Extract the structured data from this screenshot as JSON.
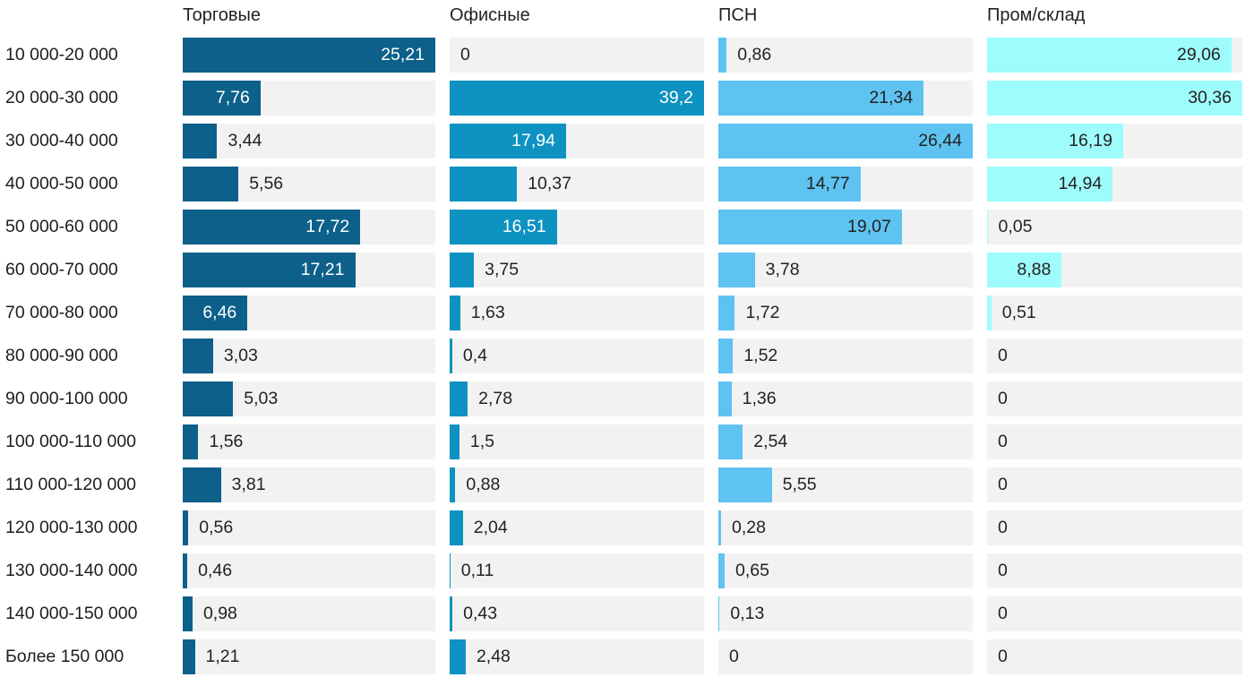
{
  "chart_data": {
    "type": "bar",
    "orientation": "horizontal",
    "title": "",
    "xlabel": "",
    "ylabel": "",
    "categories": [
      "10 000-20 000",
      "20 000-30 000",
      "30 000-40 000",
      "40 000-50 000",
      "50 000-60 000",
      "60 000-70 000",
      "70 000-80 000",
      "80 000-90 000",
      "90 000-100 000",
      "100 000-110 000",
      "110 000-120 000",
      "120 000-130 000",
      "130 000-140 000",
      "140 000-150 000",
      "Более 150 000"
    ],
    "series": [
      {
        "name": "Торговые",
        "color": "#0d6089",
        "label_color_inside": "#ffffff",
        "values": [
          25.21,
          7.76,
          3.44,
          5.56,
          17.72,
          17.21,
          6.46,
          3.03,
          5.03,
          1.56,
          3.81,
          0.56,
          0.46,
          0.98,
          1.21
        ],
        "labels": [
          "25,21",
          "7,76",
          "3,44",
          "5,56",
          "17,72",
          "17,21",
          "6,46",
          "3,03",
          "5,03",
          "1,56",
          "3,81",
          "0,56",
          "0,46",
          "0,98",
          "1,21"
        ],
        "axis_max": 25.21
      },
      {
        "name": "Офисные",
        "color": "#0d92c1",
        "label_color_inside": "#ffffff",
        "values": [
          0,
          39.2,
          17.94,
          10.37,
          16.51,
          3.75,
          1.63,
          0.4,
          2.78,
          1.5,
          0.88,
          2.04,
          0.11,
          0.43,
          2.48
        ],
        "labels": [
          "0",
          "39,2",
          "17,94",
          "10,37",
          "16,51",
          "3,75",
          "1,63",
          "0,4",
          "2,78",
          "1,5",
          "0,88",
          "2,04",
          "0,11",
          "0,43",
          "2,48"
        ],
        "axis_max": 39.2
      },
      {
        "name": "ПСН",
        "color": "#5ec3f1",
        "label_color_inside": "#222222",
        "values": [
          0.86,
          21.34,
          26.44,
          14.77,
          19.07,
          3.78,
          1.72,
          1.52,
          1.36,
          2.54,
          5.55,
          0.28,
          0.65,
          0.13,
          0
        ],
        "labels": [
          "0,86",
          "21,34",
          "26,44",
          "14,77",
          "19,07",
          "3,78",
          "1,72",
          "1,52",
          "1,36",
          "2,54",
          "5,55",
          "0,28",
          "0,65",
          "0,13",
          "0"
        ],
        "axis_max": 26.44
      },
      {
        "name": "Пром/склад",
        "color": "#9ffcfc",
        "label_color_inside": "#222222",
        "values": [
          29.06,
          30.36,
          16.19,
          14.94,
          0.05,
          8.88,
          0.51,
          0,
          0,
          0,
          0,
          0,
          0,
          0,
          0
        ],
        "labels": [
          "29,06",
          "30,36",
          "16,19",
          "14,94",
          "0,05",
          "8,88",
          "0,51",
          "0",
          "0",
          "0",
          "0",
          "0",
          "0",
          "0",
          "0"
        ],
        "axis_max": 30.36
      }
    ],
    "track_color": "#f2f2f2",
    "value_label_color_outside": "#222222",
    "category_label_color": "#1d1d1d",
    "header_label_color": "#222222",
    "layout_hints": {
      "legend": "column-headers-top",
      "grid": "off",
      "each_series_scaled_to_own_max": true,
      "value_labels": "inside-right when bar wide enough, otherwise outside-left of track remainder"
    }
  }
}
